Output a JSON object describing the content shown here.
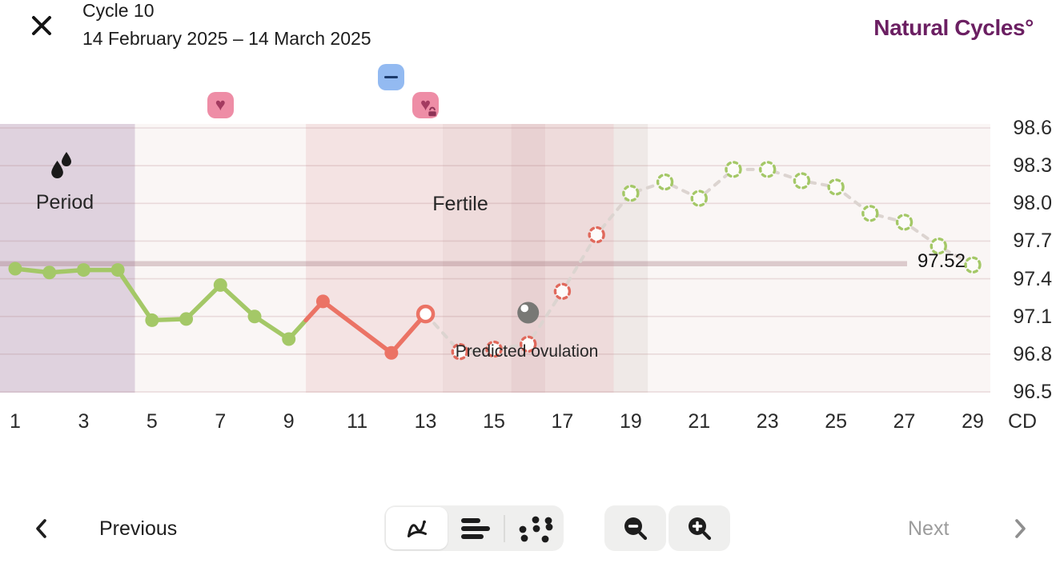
{
  "header": {
    "title": "Cycle 10",
    "date_range": "14 February 2025 – 14 March 2025",
    "logo_text": "Natural Cycles°"
  },
  "annotations": {
    "period": "Period",
    "fertile": "Fertile",
    "ovulation": "Predicted ovulation",
    "coverline_value": "97.52"
  },
  "footer": {
    "previous": "Previous",
    "next": "Next"
  },
  "colors": {
    "green": "#A4C867",
    "red": "#EB7365",
    "pred_red": "#E0695C",
    "dashed": "#DCD4D0",
    "coverline": "rgba(163,120,129,0.35)",
    "grid": "rgba(166,108,116,0.20)",
    "chart_bg": "#FAF6F5",
    "ovulation_fill": "#787875",
    "heart_bg": "#EE8DA6",
    "heart_fg": "#A33B60",
    "excluded_bg": "#93BAF1",
    "excluded_fg": "#1C3A6B",
    "logo": "#6B1F62"
  },
  "markers": [
    {
      "day": 7,
      "type": "heart",
      "name": "heart-marker-icon"
    },
    {
      "day": 12,
      "type": "excluded",
      "name": "excluded-temperature-marker-icon"
    },
    {
      "day": 13,
      "type": "heart_lock",
      "name": "heart-lock-marker-icon"
    }
  ],
  "chart_data": {
    "type": "line",
    "xlabel": "CD",
    "x_ticks": [
      1,
      3,
      5,
      7,
      9,
      11,
      13,
      15,
      17,
      19,
      21,
      23,
      25,
      27,
      29
    ],
    "y_ticks": [
      "98.6",
      "98.3",
      "98.0",
      "97.7",
      "97.4",
      "97.1",
      "96.8",
      "96.5"
    ],
    "xlim": [
      0.5,
      29.5
    ],
    "ylim": [
      96.5,
      98.63
    ],
    "coverline": 97.52,
    "ovulation": {
      "day": 16,
      "temp": 97.13
    },
    "bands": [
      {
        "label": "Period",
        "from": 0.5,
        "to": 4.5,
        "color": "#DFD2DE"
      },
      {
        "label": "Fertile",
        "from": 9.5,
        "to": 13.5,
        "color": "#F4E3E3"
      },
      {
        "from": 13.5,
        "to": 15.5,
        "color": "#EEDBDB"
      },
      {
        "from": 15.5,
        "to": 16.5,
        "color": "#E8D1D2"
      },
      {
        "from": 16.5,
        "to": 18.5,
        "color": "#EEDBDB"
      },
      {
        "from": 18.5,
        "to": 19.5,
        "color": "#EFE9E7"
      }
    ],
    "series": [
      {
        "name": "measured",
        "points": [
          {
            "day": 1,
            "temp": 97.48,
            "state": "normal"
          },
          {
            "day": 2,
            "temp": 97.45,
            "state": "normal"
          },
          {
            "day": 3,
            "temp": 97.47,
            "state": "normal"
          },
          {
            "day": 4,
            "temp": 97.47,
            "state": "normal"
          },
          {
            "day": 5,
            "temp": 97.07,
            "state": "normal"
          },
          {
            "day": 6,
            "temp": 97.08,
            "state": "normal"
          },
          {
            "day": 7,
            "temp": 97.35,
            "state": "normal"
          },
          {
            "day": 8,
            "temp": 97.1,
            "state": "normal"
          },
          {
            "day": 9,
            "temp": 96.92,
            "state": "normal"
          },
          {
            "day": 10,
            "temp": 97.22,
            "state": "fertile"
          },
          {
            "day": 12,
            "temp": 96.81,
            "state": "fertile"
          },
          {
            "day": 13,
            "temp": 97.12,
            "state": "excluded"
          }
        ]
      },
      {
        "name": "predicted",
        "points": [
          {
            "day": 14,
            "temp": 96.82,
            "state": "fertile"
          },
          {
            "day": 15,
            "temp": 96.84,
            "state": "fertile"
          },
          {
            "day": 16,
            "temp": 96.88,
            "state": "fertile"
          },
          {
            "day": 17,
            "temp": 97.3,
            "state": "fertile"
          },
          {
            "day": 18,
            "temp": 97.75,
            "state": "fertile"
          },
          {
            "day": 19,
            "temp": 98.08,
            "state": "safe"
          },
          {
            "day": 20,
            "temp": 98.17,
            "state": "safe"
          },
          {
            "day": 21,
            "temp": 98.04,
            "state": "safe"
          },
          {
            "day": 22,
            "temp": 98.27,
            "state": "safe"
          },
          {
            "day": 23,
            "temp": 98.27,
            "state": "safe"
          },
          {
            "day": 24,
            "temp": 98.18,
            "state": "safe"
          },
          {
            "day": 25,
            "temp": 98.13,
            "state": "safe"
          },
          {
            "day": 26,
            "temp": 97.92,
            "state": "safe"
          },
          {
            "day": 27,
            "temp": 97.85,
            "state": "safe"
          },
          {
            "day": 28,
            "temp": 97.66,
            "state": "safe"
          },
          {
            "day": 29,
            "temp": 97.51,
            "state": "safe"
          }
        ]
      }
    ]
  }
}
